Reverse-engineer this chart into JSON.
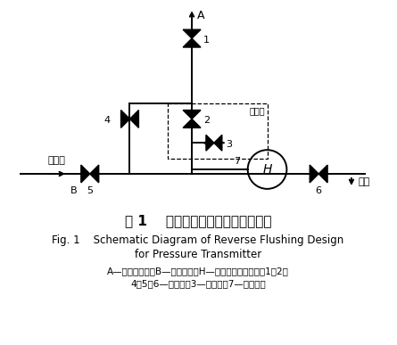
{
  "title_cn": "图 1    压力变送器反冲水设计示意图",
  "title_en1": "Fig. 1    Schematic Diagram of Reverse Flushing Design",
  "title_en2": "for Pressure Transmitter",
  "caption1": "A—接过程压力；B—接反冲水；H—压力变送器高压侧；1、2、",
  "caption2": "4、5、6—截止阀；3—排污阀；7—排污丝堵",
  "bg_color": "#ffffff",
  "line_color": "#000000"
}
